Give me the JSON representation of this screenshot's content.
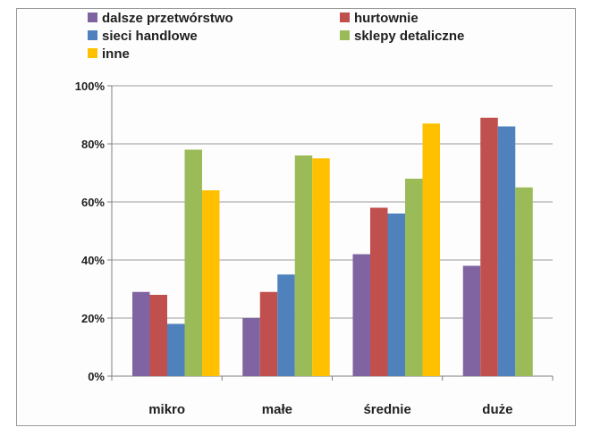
{
  "chart_data": {
    "type": "bar",
    "categories": [
      "mikro",
      "małe",
      "średnie",
      "duże"
    ],
    "series": [
      {
        "name": "dalsze przetwórstwo",
        "color": "#8064a2",
        "values": [
          29,
          20,
          42,
          38
        ]
      },
      {
        "name": "hurtownie",
        "color": "#c0504d",
        "values": [
          28,
          29,
          58,
          89
        ]
      },
      {
        "name": "sieci handlowe",
        "color": "#4f81bd",
        "values": [
          18,
          35,
          56,
          86
        ]
      },
      {
        "name": "sklepy detaliczne",
        "color": "#9bbb59",
        "values": [
          78,
          76,
          68,
          65
        ]
      },
      {
        "name": "inne",
        "color": "#ffc000",
        "values": [
          64,
          75,
          87,
          null
        ]
      }
    ],
    "ylim": [
      0,
      100
    ],
    "yticks": [
      "0%",
      "20%",
      "40%",
      "60%",
      "80%",
      "100%"
    ],
    "grid": true,
    "legend_position": "top"
  }
}
